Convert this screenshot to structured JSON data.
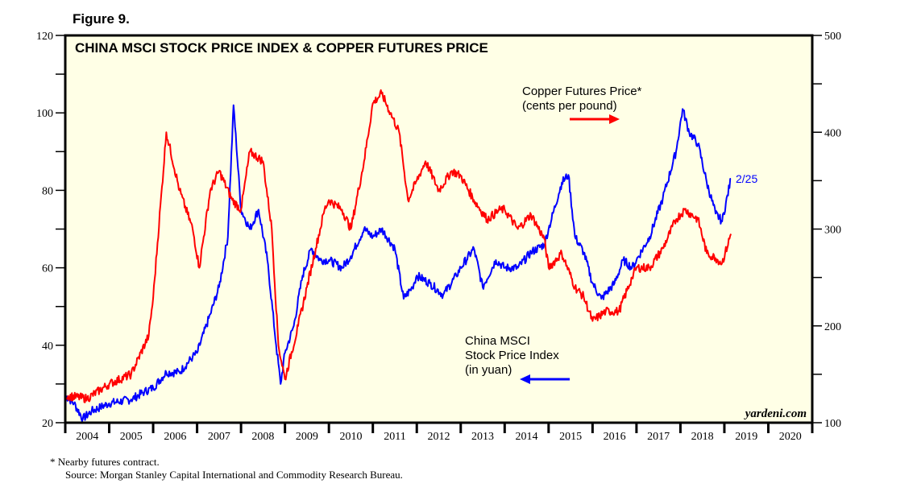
{
  "figure_label": "Figure 9.",
  "chart_data": {
    "type": "line",
    "title": "CHINA MSCI STOCK PRICE INDEX & COPPER FUTURES PRICE",
    "x_range": [
      2004,
      2021
    ],
    "x_tick_labels": [
      "2004",
      "2005",
      "2006",
      "2007",
      "2008",
      "2009",
      "2010",
      "2011",
      "2012",
      "2013",
      "2014",
      "2015",
      "2016",
      "2017",
      "2018",
      "2019",
      "2020"
    ],
    "left_axis": {
      "range": [
        20,
        120
      ],
      "ticks": [
        20,
        40,
        60,
        80,
        100,
        120
      ],
      "minor_step": 10
    },
    "right_axis": {
      "range": [
        100,
        500
      ],
      "ticks": [
        100,
        200,
        300,
        400,
        500
      ],
      "minor_step": 50
    },
    "series": [
      {
        "name": "China MSCI Stock Price Index (in yuan)",
        "axis": "left",
        "color": "#0000ff",
        "x": [
          2004.0,
          2004.2,
          2004.4,
          2004.6,
          2004.8,
          2005.0,
          2005.5,
          2005.8,
          2006.0,
          2006.3,
          2006.6,
          2006.9,
          2007.0,
          2007.3,
          2007.5,
          2007.7,
          2007.83,
          2008.0,
          2008.2,
          2008.4,
          2008.6,
          2008.8,
          2008.9,
          2009.0,
          2009.2,
          2009.4,
          2009.6,
          2009.8,
          2010.0,
          2010.3,
          2010.5,
          2010.8,
          2011.0,
          2011.2,
          2011.5,
          2011.7,
          2011.9,
          2012.0,
          2012.3,
          2012.6,
          2012.9,
          2013.0,
          2013.3,
          2013.5,
          2013.8,
          2014.0,
          2014.3,
          2014.6,
          2014.9,
          2015.0,
          2015.3,
          2015.45,
          2015.6,
          2015.8,
          2016.0,
          2016.2,
          2016.5,
          2016.7,
          2016.9,
          2017.0,
          2017.3,
          2017.6,
          2017.9,
          2018.05,
          2018.2,
          2018.4,
          2018.6,
          2018.8,
          2018.95,
          2019.15
        ],
        "values": [
          27,
          25,
          21,
          23,
          24,
          25,
          26,
          28,
          29,
          33,
          33,
          37,
          38,
          48,
          55,
          68,
          102,
          75,
          70,
          75,
          62,
          40,
          30,
          38,
          45,
          58,
          65,
          62,
          62,
          60,
          63,
          70,
          68,
          70,
          65,
          52,
          55,
          58,
          56,
          53,
          58,
          60,
          65,
          55,
          62,
          60,
          60,
          64,
          66,
          70,
          82,
          84,
          68,
          64,
          56,
          52,
          56,
          62,
          60,
          62,
          68,
          78,
          90,
          101,
          95,
          92,
          82,
          74,
          72,
          83
        ]
      },
      {
        "name": "Copper Futures Price* (cents per pound)",
        "axis": "right",
        "color": "#ff0000",
        "x": [
          2004.0,
          2004.5,
          2005.0,
          2005.5,
          2005.9,
          2006.0,
          2006.3,
          2006.6,
          2006.9,
          2007.05,
          2007.3,
          2007.5,
          2007.8,
          2008.0,
          2008.2,
          2008.5,
          2008.7,
          2008.85,
          2009.0,
          2009.3,
          2009.5,
          2009.7,
          2009.9,
          2010.0,
          2010.3,
          2010.5,
          2010.8,
          2011.0,
          2011.2,
          2011.4,
          2011.6,
          2011.8,
          2012.0,
          2012.2,
          2012.5,
          2012.8,
          2013.0,
          2013.3,
          2013.6,
          2013.9,
          2014.0,
          2014.3,
          2014.6,
          2014.9,
          2015.0,
          2015.3,
          2015.6,
          2015.8,
          2016.0,
          2016.3,
          2016.6,
          2016.9,
          2017.0,
          2017.3,
          2017.6,
          2017.9,
          2018.1,
          2018.4,
          2018.6,
          2018.8,
          2018.95,
          2019.15
        ],
        "values": [
          128,
          125,
          140,
          150,
          190,
          229,
          400,
          340,
          300,
          260,
          340,
          360,
          330,
          320,
          380,
          370,
          300,
          180,
          145,
          200,
          240,
          280,
          320,
          330,
          320,
          300,
          370,
          430,
          440,
          420,
          400,
          330,
          350,
          370,
          340,
          360,
          355,
          330,
          310,
          320,
          320,
          300,
          315,
          290,
          260,
          275,
          240,
          230,
          205,
          215,
          215,
          250,
          260,
          260,
          280,
          310,
          320,
          310,
          275,
          270,
          265,
          295
        ]
      }
    ],
    "annotations": {
      "copper_label_1": "Copper Futures Price*",
      "copper_label_2": "(cents per pound)",
      "msci_label_1": "China MSCI",
      "msci_label_2": "Stock Price Index",
      "msci_label_3": "(in yuan)",
      "end_date": "2/25",
      "watermark": "yardeni.com"
    }
  },
  "footnote": "*   Nearby futures contract.",
  "source": "Source: Morgan Stanley Capital International and Commodity Research Bureau."
}
